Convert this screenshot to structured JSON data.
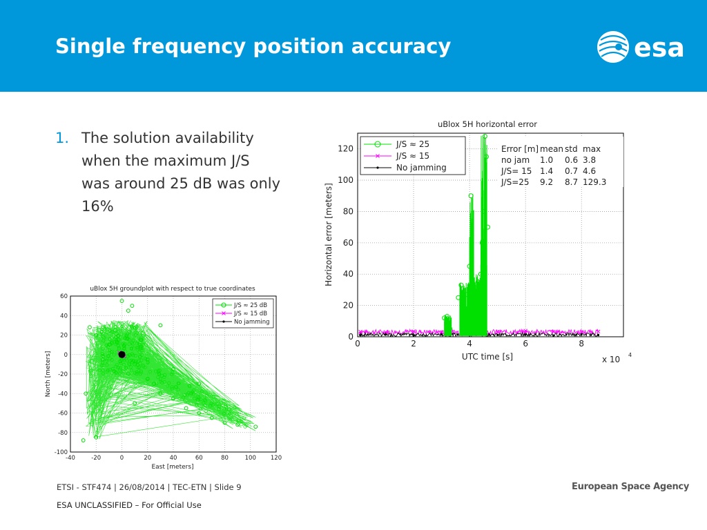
{
  "slide": {
    "title": "Single frequency position accuracy",
    "bullet_number": "1.",
    "bullet_text": "The solution availability when the maximum J/S was around 25 dB was only 16%",
    "logo_text": "esa",
    "agency": "European Space Agency",
    "footer": "ETSI - STF474 | 26/08/2014 | TEC-ETN | Slide  9",
    "classification": "ESA UNCLASSIFIED – For Official Use"
  },
  "colors": {
    "header": "#0098db",
    "green": "#00e000",
    "magenta": "#ff00ff",
    "black": "#000000"
  },
  "chart_data": [
    {
      "type": "line",
      "title": "uBlox 5H horizontal error",
      "xlabel": "UTC time [s]",
      "ylabel": "Horizontal error [meters]",
      "x_multiplier": "x 10",
      "x_multiplier_exp": "4",
      "xlim": [
        0,
        9.5
      ],
      "ylim": [
        0,
        130
      ],
      "x_ticks": [
        0,
        2,
        4,
        6,
        8
      ],
      "y_ticks": [
        0,
        20,
        40,
        60,
        80,
        100,
        120
      ],
      "grid": true,
      "legend": [
        {
          "label": "J/S ≈ 25",
          "color": "#00e000",
          "marker": "circle"
        },
        {
          "label": "J/S ≈ 15",
          "color": "#ff00ff",
          "marker": "x"
        },
        {
          "label": "No jamming",
          "color": "#000000",
          "marker": "dot"
        }
      ],
      "stats_table": {
        "header": [
          "Error [m]",
          "mean",
          "std",
          "max"
        ],
        "rows": [
          [
            "no jam",
            "1.0",
            "0.6",
            "3.8"
          ],
          [
            "J/S= 15",
            "1.4",
            "0.7",
            "4.6"
          ],
          [
            "J/S=25",
            "9.2",
            "8.7",
            "129.3"
          ]
        ]
      },
      "series": [
        {
          "name": "J/S ≈ 25",
          "x": [
            3.1,
            3.2,
            3.3,
            3.6,
            3.7,
            3.8,
            3.9,
            4.0,
            4.05,
            4.1,
            4.2,
            4.3,
            4.4,
            4.45,
            4.5,
            4.55,
            4.6,
            4.65
          ],
          "y": [
            12,
            13,
            5,
            25,
            33,
            22,
            27,
            45,
            90,
            30,
            24,
            35,
            40,
            60,
            80,
            128,
            115,
            70
          ]
        },
        {
          "name": "J/S ≈ 15",
          "x": [
            0.1,
            1,
            2,
            3,
            4,
            5,
            6,
            7,
            8,
            8.6
          ],
          "y": [
            3.2,
            3.0,
            3.5,
            2.8,
            3.6,
            3.1,
            3.8,
            3.2,
            3.0,
            3.3
          ]
        },
        {
          "name": "No jamming",
          "x": [
            0.1,
            1,
            2,
            3,
            4,
            5,
            6,
            7,
            8,
            8.6
          ],
          "y": [
            1.0,
            1.3,
            0.9,
            1.5,
            1.0,
            1.2,
            1.4,
            0.8,
            1.6,
            1.1
          ]
        }
      ]
    },
    {
      "type": "scatter",
      "title": "uBlox 5H groundplot with respect to true coordinates",
      "xlabel": "East [meters]",
      "ylabel": "North [meters]",
      "xlim": [
        -40,
        120
      ],
      "ylim": [
        -100,
        60
      ],
      "x_ticks": [
        -40,
        -20,
        0,
        20,
        40,
        60,
        80,
        100,
        120
      ],
      "y_ticks": [
        -100,
        -80,
        -60,
        -40,
        -20,
        0,
        20,
        40,
        60
      ],
      "grid": true,
      "legend": [
        {
          "label": "J/S ≈ 25 dB",
          "color": "#00e000",
          "marker": "circle"
        },
        {
          "label": "J/S ≈ 15 dB",
          "color": "#ff00ff",
          "marker": "x"
        },
        {
          "label": "No jamming",
          "color": "#000000",
          "marker": "dot"
        }
      ],
      "series": [
        {
          "name": "J/S ≈ 25 dB",
          "x": [
            0,
            -10,
            10,
            -20,
            15,
            5,
            -5,
            20,
            -15,
            25,
            30,
            40,
            50,
            60,
            70,
            80,
            90,
            104,
            -25,
            -28,
            -30,
            -20,
            0,
            5,
            20,
            40,
            60,
            30,
            10,
            8
          ],
          "y": [
            0,
            10,
            -10,
            20,
            15,
            -20,
            25,
            -25,
            -5,
            -30,
            -40,
            -45,
            -55,
            -60,
            -65,
            -70,
            -72,
            -74,
            28,
            -40,
            -88,
            -85,
            55,
            45,
            -5,
            -15,
            -30,
            30,
            -50,
            50
          ]
        },
        {
          "name": "J/S ≈ 15 dB",
          "x": [
            0,
            1,
            -1,
            2,
            -2
          ],
          "y": [
            0,
            1,
            -1,
            -2,
            2
          ]
        },
        {
          "name": "No jamming",
          "x": [
            0,
            1,
            -1,
            0.5,
            -0.5
          ],
          "y": [
            0,
            0.5,
            -0.5,
            1,
            -1
          ]
        }
      ]
    }
  ]
}
